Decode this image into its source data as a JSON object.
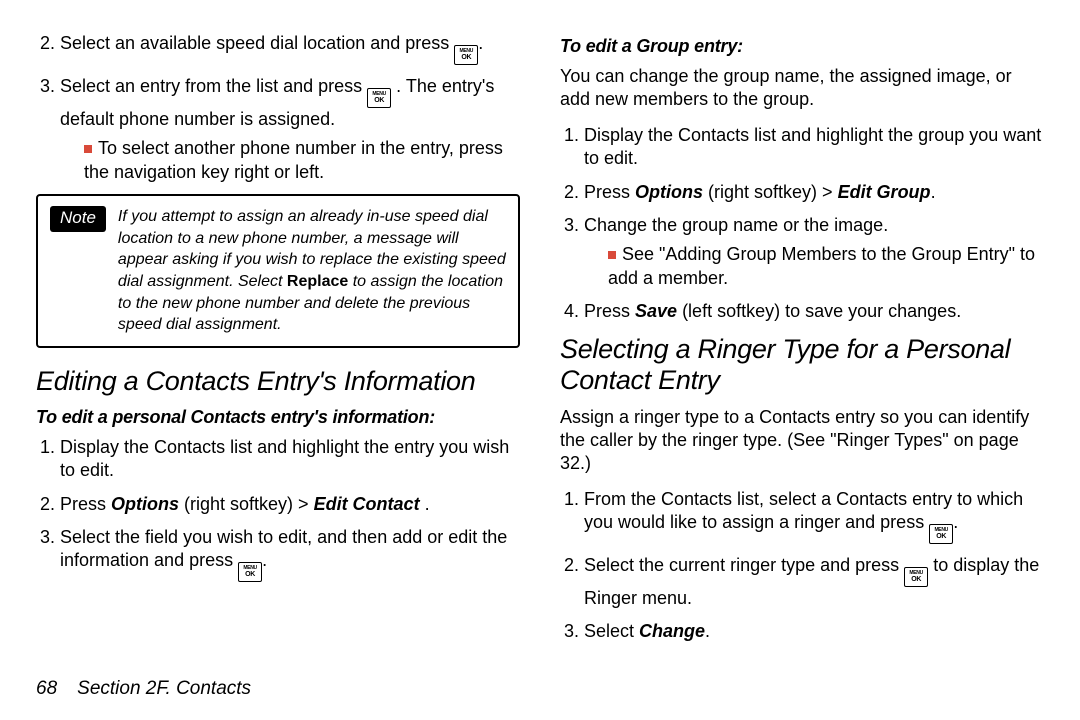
{
  "left": {
    "step2": "Select an available speed dial location and press ",
    "step3a": "Select an entry from the list and press ",
    "step3b": ". The entry's default phone number is assigned.",
    "bullet1": "To select another phone number in the entry, press the navigation key right or left.",
    "note_label": "Note",
    "note_text_1": "If you attempt to assign an already in-use speed dial location to a new phone number, a message will appear asking if you wish to replace the existing speed dial assignment. Select ",
    "note_bold": "Replace",
    "note_text_2": " to assign the location to the new phone number and delete the previous speed dial assignment.",
    "h2": "Editing a Contacts Entry's Information",
    "sub1": "To edit a personal Contacts entry's information:",
    "e1": "Display the Contacts list and highlight the entry you wish to edit.",
    "e2a": "Press ",
    "e2b": "Options",
    "e2c": " (right softkey) > ",
    "e2d": "Edit Contact",
    "e2e": " .",
    "e3a": "Select the field you wish to edit, and then add or edit the information and press ",
    "e3b": "."
  },
  "right": {
    "sub1": "To edit a Group entry:",
    "p1": "You can change the group name, the assigned image, or add new members to the group.",
    "g1": "Display the Contacts list and highlight the group you want to edit.",
    "g2a": "Press ",
    "g2b": "Options",
    "g2c": " (right softkey) > ",
    "g2d": "Edit Group",
    "g2e": ".",
    "g3": "Change the group name or the image.",
    "gbullet": "See \"Adding Group Members to the Group Entry\" to add a member.",
    "g4a": "Press ",
    "g4b": "Save",
    "g4c": " (left softkey) to save your changes.",
    "h2": "Selecting a Ringer Type for a Personal Contact Entry",
    "p2": "Assign a ringer type to a Contacts entry so you can identify the caller by the ringer type. (See \"Ringer Types\" on page 32.)",
    "r1a": "From the Contacts list, select a Contacts entry to which you would like to assign a ringer and press ",
    "r1b": ".",
    "r2a": "Select the current ringer type and press ",
    "r2b": " to display the Ringer menu.",
    "r3a": "Select ",
    "r3b": "Change",
    "r3c": "."
  },
  "footer": {
    "page": "68",
    "section": "Section 2F. Contacts"
  },
  "icons": {
    "menu": "MENU",
    "ok": "OK"
  }
}
